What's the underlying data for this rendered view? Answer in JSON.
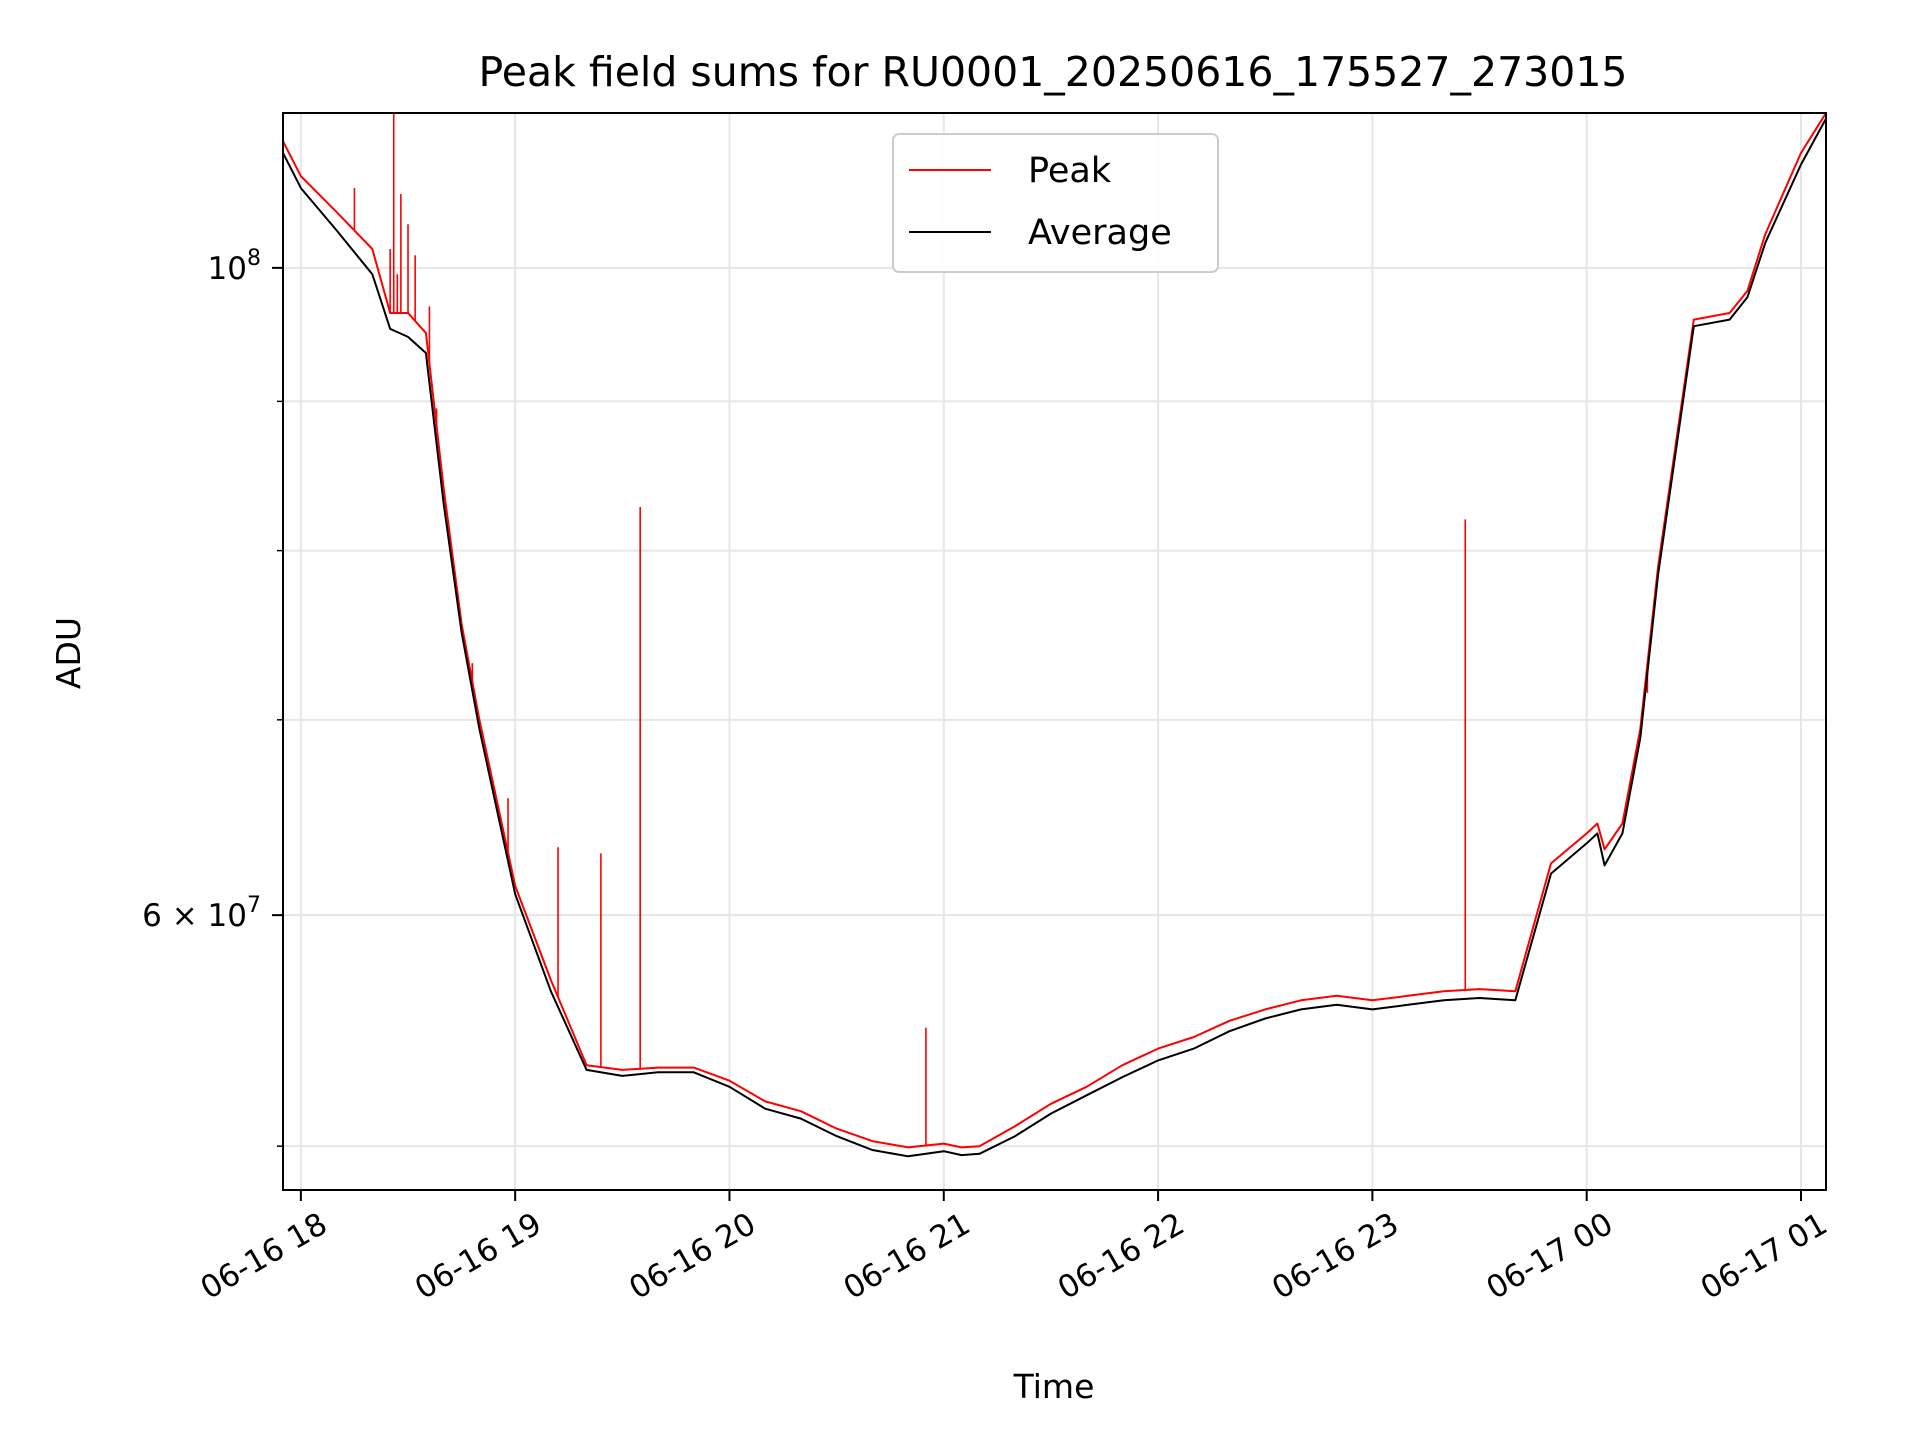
{
  "chart_data": {
    "type": "line",
    "title": "Peak field sums for RU0001_20250616_175527_273015",
    "xlabel": "Time",
    "ylabel": "ADU",
    "yscale": "log",
    "xlim": [
      "06-16 17:55",
      "06-17 01:07"
    ],
    "ylim": [
      48300000,
      113000000
    ],
    "grid": true,
    "legend_position": "top-center",
    "x_ticks": [
      {
        "value": "06-16 18:00",
        "label": "06-16 18"
      },
      {
        "value": "06-16 19:00",
        "label": "06-16 19"
      },
      {
        "value": "06-16 20:00",
        "label": "06-16 20"
      },
      {
        "value": "06-16 21:00",
        "label": "06-16 21"
      },
      {
        "value": "06-16 22:00",
        "label": "06-16 22"
      },
      {
        "value": "06-16 23:00",
        "label": "06-16 23"
      },
      {
        "value": "06-17 00:00",
        "label": "06-17 00"
      },
      {
        "value": "06-17 01:00",
        "label": "06-17 01"
      }
    ],
    "y_ticks_major": [
      {
        "value": 60000000,
        "mantissa": "6",
        "exponent": "7"
      },
      {
        "value": 100000000,
        "mantissa": "",
        "exponent": "8"
      }
    ],
    "y_ticks_minor": [
      50000000,
      70000000,
      80000000,
      90000000
    ],
    "series": [
      {
        "name": "Average",
        "color": "#000000",
        "x": [
          "06-16 17:55",
          "06-16 18:00",
          "06-16 18:10",
          "06-16 18:20",
          "06-16 18:25",
          "06-16 18:30",
          "06-16 18:35",
          "06-16 18:40",
          "06-16 18:45",
          "06-16 18:50",
          "06-16 19:00",
          "06-16 19:10",
          "06-16 19:20",
          "06-16 19:30",
          "06-16 19:40",
          "06-16 19:50",
          "06-16 20:00",
          "06-16 20:10",
          "06-16 20:20",
          "06-16 20:30",
          "06-16 20:40",
          "06-16 20:50",
          "06-16 21:00",
          "06-16 21:05",
          "06-16 21:10",
          "06-16 21:20",
          "06-16 21:30",
          "06-16 21:40",
          "06-16 21:50",
          "06-16 22:00",
          "06-16 22:10",
          "06-16 22:20",
          "06-16 22:30",
          "06-16 22:40",
          "06-16 22:50",
          "06-16 23:00",
          "06-16 23:10",
          "06-16 23:20",
          "06-16 23:30",
          "06-16 23:40",
          "06-16 23:50",
          "06-17 00:00",
          "06-17 00:03",
          "06-17 00:05",
          "06-17 00:10",
          "06-17 00:15",
          "06-17 00:20",
          "06-17 00:30",
          "06-17 00:40",
          "06-17 00:45",
          "06-17 00:50",
          "06-17 01:00",
          "06-17 01:07"
        ],
        "y": [
          109500000,
          106500000,
          103000000,
          99500000,
          95300000,
          94700000,
          93500000,
          83000000,
          75000000,
          69500000,
          61000000,
          56500000,
          53100000,
          52850000,
          53000000,
          53000000,
          52400000,
          51500000,
          51100000,
          50400000,
          49850000,
          49600000,
          49800000,
          49650000,
          49700000,
          50400000,
          51300000,
          52050000,
          52800000,
          53500000,
          54000000,
          54750000,
          55300000,
          55700000,
          55900000,
          55700000,
          55900000,
          56100000,
          56200000,
          56100000,
          62000000,
          63500000,
          64000000,
          62400000,
          64000000,
          69000000,
          78500000,
          95500000,
          96000000,
          97700000,
          102000000,
          108500000,
          112500000
        ]
      },
      {
        "name": "Peak",
        "color": "#ff0000",
        "x": [
          "06-16 17:55",
          "06-16 18:00",
          "06-16 18:10",
          "06-16 18:20",
          "06-16 18:25",
          "06-16 18:30",
          "06-16 18:35",
          "06-16 18:40",
          "06-16 18:45",
          "06-16 18:50",
          "06-16 19:00",
          "06-16 19:10",
          "06-16 19:20",
          "06-16 19:30",
          "06-16 19:40",
          "06-16 19:50",
          "06-16 20:00",
          "06-16 20:10",
          "06-16 20:20",
          "06-16 20:30",
          "06-16 20:40",
          "06-16 20:50",
          "06-16 21:00",
          "06-16 21:05",
          "06-16 21:10",
          "06-16 21:20",
          "06-16 21:30",
          "06-16 21:40",
          "06-16 21:50",
          "06-16 22:00",
          "06-16 22:10",
          "06-16 22:20",
          "06-16 22:30",
          "06-16 22:40",
          "06-16 22:50",
          "06-16 23:00",
          "06-16 23:10",
          "06-16 23:20",
          "06-16 23:30",
          "06-16 23:40",
          "06-16 23:50",
          "06-17 00:00",
          "06-17 00:03",
          "06-17 00:05",
          "06-17 00:10",
          "06-17 00:15",
          "06-17 00:20",
          "06-17 00:30",
          "06-17 00:40",
          "06-17 00:45",
          "06-17 00:50",
          "06-17 01:00",
          "06-17 01:07"
        ],
        "y": [
          110500000,
          107500000,
          104500000,
          101500000,
          96500000,
          96500000,
          95000000,
          84000000,
          75500000,
          70000000,
          61400000,
          57000000,
          53300000,
          53100000,
          53200000,
          53200000,
          52650000,
          51800000,
          51400000,
          50700000,
          50200000,
          49950000,
          50100000,
          49950000,
          50000000,
          50800000,
          51700000,
          52400000,
          53300000,
          54000000,
          54500000,
          55200000,
          55700000,
          56100000,
          56300000,
          56100000,
          56300000,
          56500000,
          56600000,
          56500000,
          62500000,
          64000000,
          64500000,
          63200000,
          64500000,
          69500000,
          79000000,
          96000000,
          96500000,
          98200000,
          102700000,
          109500000,
          113000000
        ]
      }
    ],
    "peak_spikes": [
      {
        "x": "06-16 18:15",
        "y": 106500000
      },
      {
        "x": "06-16 18:25",
        "y": 101500000
      },
      {
        "x": "06-16 18:26",
        "y": 113000000
      },
      {
        "x": "06-16 18:27",
        "y": 99500000
      },
      {
        "x": "06-16 18:28",
        "y": 106000000
      },
      {
        "x": "06-16 18:30",
        "y": 103500000
      },
      {
        "x": "06-16 18:32",
        "y": 101000000
      },
      {
        "x": "06-16 18:36",
        "y": 97000000
      },
      {
        "x": "06-16 18:38",
        "y": 89500000
      },
      {
        "x": "06-16 18:48",
        "y": 73200000
      },
      {
        "x": "06-16 18:58",
        "y": 65800000
      },
      {
        "x": "06-16 19:12",
        "y": 63300000
      },
      {
        "x": "06-16 19:24",
        "y": 63000000
      },
      {
        "x": "06-16 19:35",
        "y": 82800000
      },
      {
        "x": "06-16 20:55",
        "y": 54900000
      },
      {
        "x": "06-16 23:26",
        "y": 82000000
      },
      {
        "x": "06-17 00:17",
        "y": 71500000
      }
    ]
  }
}
